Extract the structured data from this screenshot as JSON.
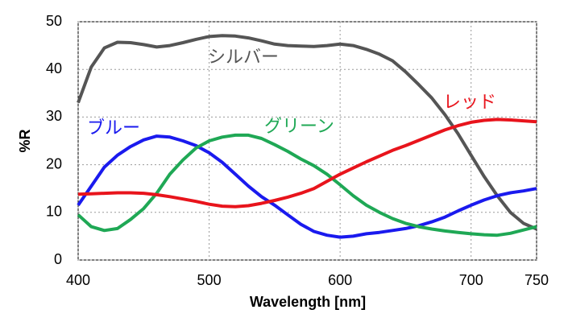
{
  "chart_data": {
    "type": "line",
    "x": [
      400,
      410,
      420,
      430,
      440,
      450,
      460,
      470,
      480,
      490,
      500,
      510,
      520,
      530,
      540,
      550,
      560,
      570,
      580,
      590,
      600,
      610,
      620,
      630,
      640,
      650,
      660,
      670,
      680,
      690,
      700,
      710,
      720,
      730,
      740,
      750
    ],
    "xlabel": "Wavelength [nm]",
    "ylabel": "%R",
    "xlim": [
      400,
      750
    ],
    "xticks": [
      400,
      500,
      600,
      700,
      750
    ],
    "ylim": [
      0,
      50
    ],
    "yticks": [
      0,
      10,
      20,
      30,
      40,
      50
    ],
    "grid": true,
    "series": [
      {
        "name": "シルバー",
        "color": "#555555",
        "values": [
          33,
          40.5,
          44.5,
          45.7,
          45.6,
          45.2,
          44.7,
          45,
          45.6,
          46.3,
          46.9,
          47.1,
          47,
          46.6,
          46,
          45.3,
          45,
          44.9,
          44.8,
          45,
          45.3,
          45,
          44.2,
          43.2,
          41.8,
          39.5,
          36.8,
          34,
          30.5,
          26.5,
          22,
          17.5,
          13.5,
          10,
          7.7,
          6.5
        ]
      },
      {
        "name": "ブルー",
        "color": "#1a1aee",
        "values": [
          11.5,
          15.5,
          19.5,
          22,
          23.8,
          25.2,
          26,
          25.8,
          25,
          24,
          22.5,
          20.5,
          18,
          15.5,
          13.3,
          11.5,
          9.5,
          7.5,
          6,
          5.2,
          4.8,
          5,
          5.5,
          5.8,
          6.2,
          6.6,
          7.2,
          8,
          9,
          10.3,
          11.5,
          12.6,
          13.5,
          14.1,
          14.5,
          15
        ]
      },
      {
        "name": "グリーン",
        "color": "#1fa855",
        "values": [
          9.5,
          7,
          6.2,
          6.6,
          8.5,
          10.8,
          14,
          18,
          21,
          23.5,
          25,
          25.8,
          26.2,
          26.2,
          25.5,
          24.2,
          22.8,
          21.2,
          19.8,
          18,
          15.8,
          13.5,
          11.5,
          10,
          8.7,
          7.7,
          7,
          6.5,
          6.1,
          5.8,
          5.5,
          5.3,
          5.2,
          5.6,
          6.3,
          7
        ]
      },
      {
        "name": "レッド",
        "color": "#e8141c",
        "values": [
          13.8,
          13.9,
          14,
          14.1,
          14.1,
          14,
          13.7,
          13.3,
          12.8,
          12.3,
          11.7,
          11.3,
          11.2,
          11.4,
          11.9,
          12.5,
          13.2,
          14,
          15,
          16.5,
          18,
          19.3,
          20.6,
          21.8,
          23,
          24,
          25.1,
          26.2,
          27.3,
          28.2,
          28.9,
          29.3,
          29.5,
          29.4,
          29.2,
          29
        ]
      }
    ]
  }
}
